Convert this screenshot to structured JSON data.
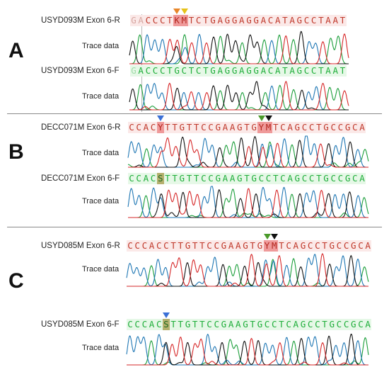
{
  "colors": {
    "A_trace": "#1b9e3a",
    "C_trace": "#1f77b4",
    "G_trace": "#111111",
    "T_trace": "#d62728",
    "reverse_text": "#c0392b",
    "forward_text": "#1fae3a",
    "arrow_orange": "#e8862a",
    "arrow_yellow": "#e6c21a",
    "arrow_blue": "#3a6fd6",
    "arrow_green": "#4a9a2a",
    "arrow_black": "#111111"
  },
  "panels": [
    {
      "letter": "A",
      "tracks": [
        {
          "name": "USYD093M Exon 6-R",
          "sequence": "GACCCTKMTCTGAGGAGGACATAGCCTAAT",
          "strand": "reverse",
          "highlight_positions": [
            6,
            7
          ],
          "faded_prefix": 2,
          "trace_label": "Trace data",
          "markers": [
            {
              "position": 6,
              "color_name": "arrow_orange",
              "icon": "triangle-down-icon"
            },
            {
              "position": 7,
              "color_name": "arrow_yellow",
              "icon": "triangle-down-icon"
            }
          ]
        },
        {
          "name": "USYD093M Exon 6-F",
          "sequence": "GACCCTGCTCTGAGGAGGACATAGCCTAAT",
          "strand": "forward",
          "highlight_positions": [],
          "faded_prefix": 1,
          "trace_label": "Trace data",
          "markers": []
        }
      ]
    },
    {
      "letter": "B",
      "tracks": [
        {
          "name": "DECC071M Exon 6-R",
          "sequence": "CCACYTTGTTCCGAAGTGYMTCAGCCTGCCGCA",
          "strand": "reverse",
          "highlight_positions": [
            4,
            18,
            19
          ],
          "faded_prefix": 0,
          "trace_label": "Trace data",
          "markers": [
            {
              "position": 4,
              "color_name": "arrow_blue",
              "icon": "triangle-down-icon"
            },
            {
              "position": 18,
              "color_name": "arrow_green",
              "icon": "triangle-down-icon"
            },
            {
              "position": 19,
              "color_name": "arrow_black",
              "icon": "triangle-down-icon"
            }
          ]
        },
        {
          "name": "DECC071M Exon 6-F",
          "sequence": "CCACSTTGTTCCGAAGTGCCTCAGCCTGCCGCA",
          "strand": "forward",
          "highlight_positions": [
            4
          ],
          "faded_prefix": 0,
          "trace_label": "Trace data",
          "markers": []
        }
      ]
    },
    {
      "letter": "C",
      "tracks": [
        {
          "name": "USYD085M Exon 6-R",
          "sequence": "CCCACCTTGTTCCGAAGTGYMTCAGCCTGCCGCA",
          "strand": "reverse",
          "highlight_positions": [
            19,
            20
          ],
          "faded_prefix": 0,
          "trace_label": "Trace data",
          "markers": [
            {
              "position": 19,
              "color_name": "arrow_green",
              "icon": "triangle-down-icon"
            },
            {
              "position": 20,
              "color_name": "arrow_black",
              "icon": "triangle-down-icon"
            }
          ]
        },
        {
          "name": "USYD085M Exon 6-F",
          "sequence": "CCCACSTTGTTCCGAAGTGCCTCAGCCTGCCGCA",
          "strand": "forward",
          "highlight_positions": [
            5
          ],
          "faded_prefix": 0,
          "trace_label": "Trace data",
          "markers": [
            {
              "position": 5,
              "color_name": "arrow_blue",
              "icon": "triangle-down-icon"
            }
          ]
        }
      ]
    }
  ]
}
